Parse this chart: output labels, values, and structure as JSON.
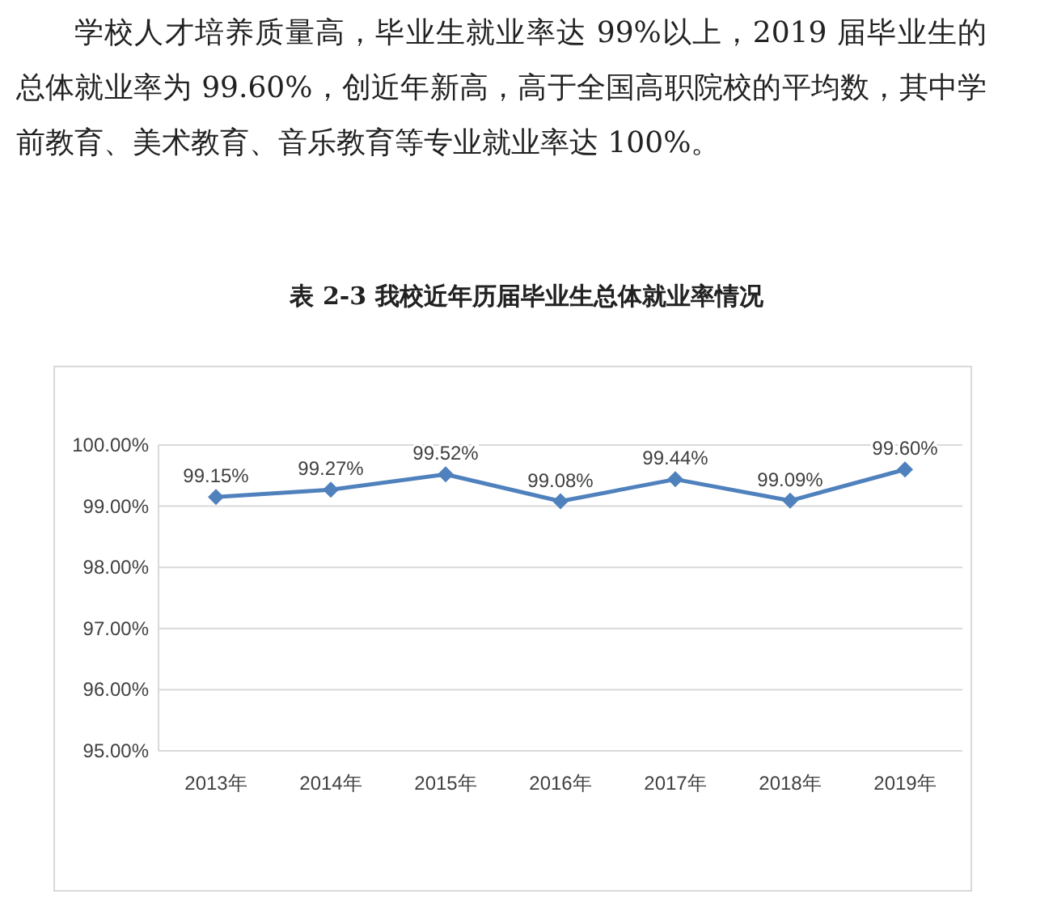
{
  "chart_data": {
    "type": "line",
    "title": "表 2-3 我校近年历届毕业生总体就业率情况",
    "annotations": [
      "学校人才培养质量高，毕业生就业率达 99%以上，2019 届毕业生的总体就业率为 99.60%，创近年新高，高于全国高职院校的平均数，其中学前教育、美术教育、音乐教育等专业就业率达 100%。"
    ],
    "categories": [
      "2013年",
      "2014年",
      "2015年",
      "2016年",
      "2017年",
      "2018年",
      "2019年"
    ],
    "series": [
      {
        "color": "#4f81bd",
        "values": [
          99.15,
          99.27,
          99.52,
          99.08,
          99.44,
          99.09,
          99.6
        ],
        "value_labels": [
          "99.15%",
          "99.27%",
          "99.52%",
          "99.08%",
          "99.44%",
          "99.09%",
          "99.60%"
        ]
      }
    ],
    "ylim": [
      95,
      100
    ],
    "yticks": [
      {
        "value": 95,
        "label": "95.00%"
      },
      {
        "value": 96,
        "label": "96.00%"
      },
      {
        "value": 97,
        "label": "97.00%"
      },
      {
        "value": 98,
        "label": "98.00%"
      },
      {
        "value": 99,
        "label": "99.00%"
      },
      {
        "value": 100,
        "label": "100.00%"
      }
    ],
    "grid": "y",
    "marker": "diamond",
    "line_style": "solid"
  }
}
